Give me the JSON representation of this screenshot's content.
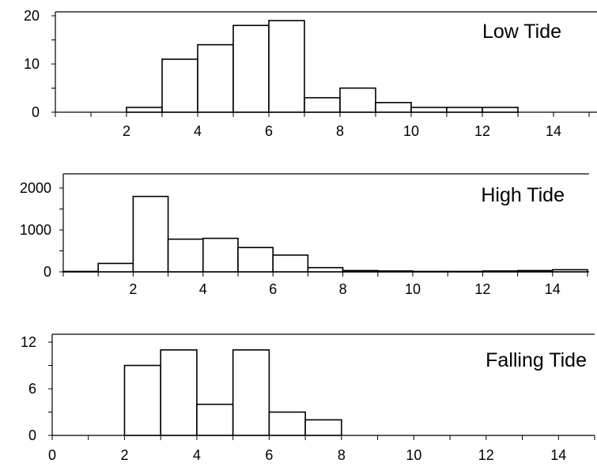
{
  "chart_data": [
    {
      "type": "bar",
      "title": "Low Tide",
      "xlabel": "",
      "ylabel": "",
      "bin_edges": [
        0,
        1,
        2,
        3,
        4,
        5,
        6,
        7,
        8,
        9,
        10,
        11,
        12,
        13,
        14,
        15
      ],
      "values": [
        0,
        0,
        1,
        11,
        14,
        18,
        19,
        3,
        5,
        2,
        1,
        1,
        1,
        0,
        0
      ],
      "xlim": [
        0,
        15
      ],
      "ylim": [
        0,
        20
      ],
      "xticks": [
        "2",
        "4",
        "6",
        "8",
        "10",
        "12",
        "14"
      ],
      "yticks": [
        "0",
        "10",
        "20"
      ],
      "grid": false
    },
    {
      "type": "bar",
      "title": "High Tide",
      "xlabel": "",
      "ylabel": "",
      "bin_edges": [
        0,
        1,
        2,
        3,
        4,
        5,
        6,
        7,
        8,
        9,
        10,
        11,
        12,
        13,
        14,
        15
      ],
      "values": [
        10,
        200,
        1800,
        780,
        800,
        580,
        400,
        100,
        30,
        20,
        10,
        10,
        20,
        30,
        50
      ],
      "xlim": [
        0,
        15
      ],
      "ylim": [
        0,
        2000
      ],
      "xticks": [
        "2",
        "4",
        "6",
        "8",
        "10",
        "12",
        "14"
      ],
      "yticks": [
        "0",
        "1000",
        "2000"
      ],
      "grid": false
    },
    {
      "type": "bar",
      "title": "Falling Tide",
      "xlabel": "",
      "ylabel": "",
      "bin_edges": [
        0,
        1,
        2,
        3,
        4,
        5,
        6,
        7,
        8,
        9,
        10,
        11,
        12,
        13,
        14,
        15
      ],
      "values": [
        0,
        0,
        9,
        11,
        4,
        11,
        3,
        2,
        0,
        0,
        0,
        0,
        0,
        0,
        0
      ],
      "xlim": [
        0,
        15
      ],
      "ylim": [
        0,
        12
      ],
      "xticks": [
        "0",
        "2",
        "4",
        "6",
        "8",
        "10",
        "12",
        "14"
      ],
      "yticks": [
        "0",
        "6",
        "12"
      ],
      "grid": false
    }
  ]
}
